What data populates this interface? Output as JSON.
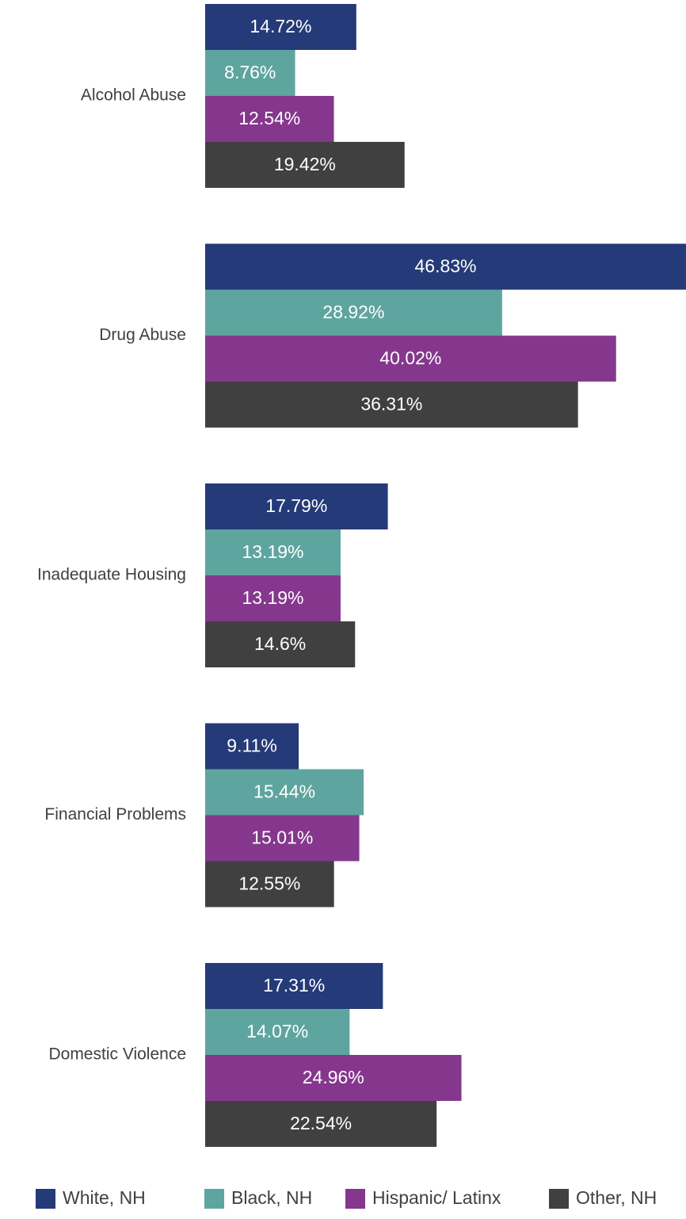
{
  "chart_data": {
    "type": "hbar",
    "categories": [
      "Alcohol Abuse",
      "Drug Abuse",
      "Inadequate Housing",
      "Financial Problems",
      "Domestic Violence"
    ],
    "series": [
      {
        "name": "White, NH",
        "color": "#253a78",
        "values": [
          14.72,
          46.83,
          17.79,
          9.11,
          17.31
        ],
        "value_labels": [
          "14.72%",
          "46.83%",
          "17.79%",
          "9.11%",
          "17.31%"
        ]
      },
      {
        "name": "Black, NH",
        "color": "#5fa59f",
        "values": [
          8.76,
          28.92,
          13.19,
          15.44,
          14.07
        ],
        "value_labels": [
          "8.76%",
          "28.92%",
          "13.19%",
          "15.44%",
          "14.07%"
        ]
      },
      {
        "name": "Hispanic/ Latinx",
        "color": "#85378d",
        "values": [
          12.54,
          40.02,
          13.19,
          15.01,
          24.96
        ],
        "value_labels": [
          "12.54%",
          "40.02%",
          "13.19%",
          "15.01%",
          "24.96%"
        ]
      },
      {
        "name": "Other, NH",
        "color": "#404040",
        "values": [
          19.42,
          36.31,
          14.6,
          12.55,
          22.54
        ],
        "value_labels": [
          "19.42%",
          "36.31%",
          "14.6%",
          "12.55%",
          "22.54%"
        ]
      }
    ],
    "legend": "bottom"
  }
}
